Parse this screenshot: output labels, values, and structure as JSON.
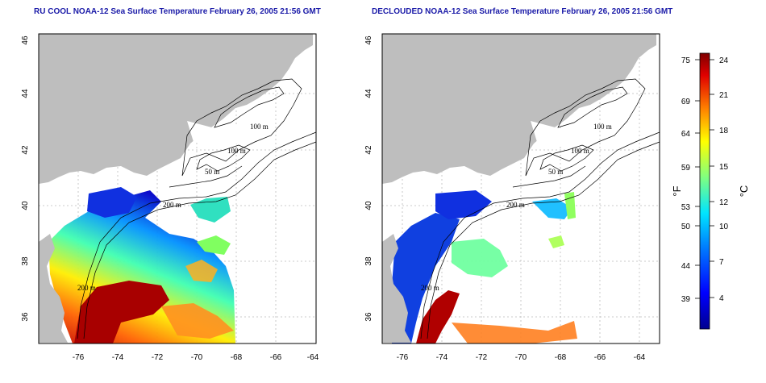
{
  "panels": [
    {
      "id": "left",
      "title": "RU COOL NOAA-12 Sea Surface Temperature February 26, 2005 21:56 GMT"
    },
    {
      "id": "right",
      "title": "DECLOUDED NOAA-12 Sea Surface Temperature February 26, 2005 21:56 GMT"
    }
  ],
  "map_axes": {
    "x_ticks": [
      "-76",
      "-74",
      "-72",
      "-70",
      "-68",
      "-66",
      "-64"
    ],
    "y_ticks": [
      "46",
      "44",
      "42",
      "40",
      "38",
      "36"
    ]
  },
  "contour_labels": [
    "100 m",
    "100 m",
    "50 m",
    "200 m",
    "200 m"
  ],
  "colorbar": {
    "fahrenheit_ticks": [
      "75",
      "69",
      "64",
      "59",
      "53",
      "50",
      "44",
      "39"
    ],
    "celsius_ticks": [
      "24",
      "21",
      "18",
      "15",
      "12",
      "10",
      "7",
      "4"
    ],
    "fahrenheit_unit": "°F",
    "celsius_unit": "°C"
  },
  "colors": {
    "land": "#bebebe",
    "title": "#1a1aa8",
    "cold": "#1010c8",
    "warm": "#b01010"
  }
}
